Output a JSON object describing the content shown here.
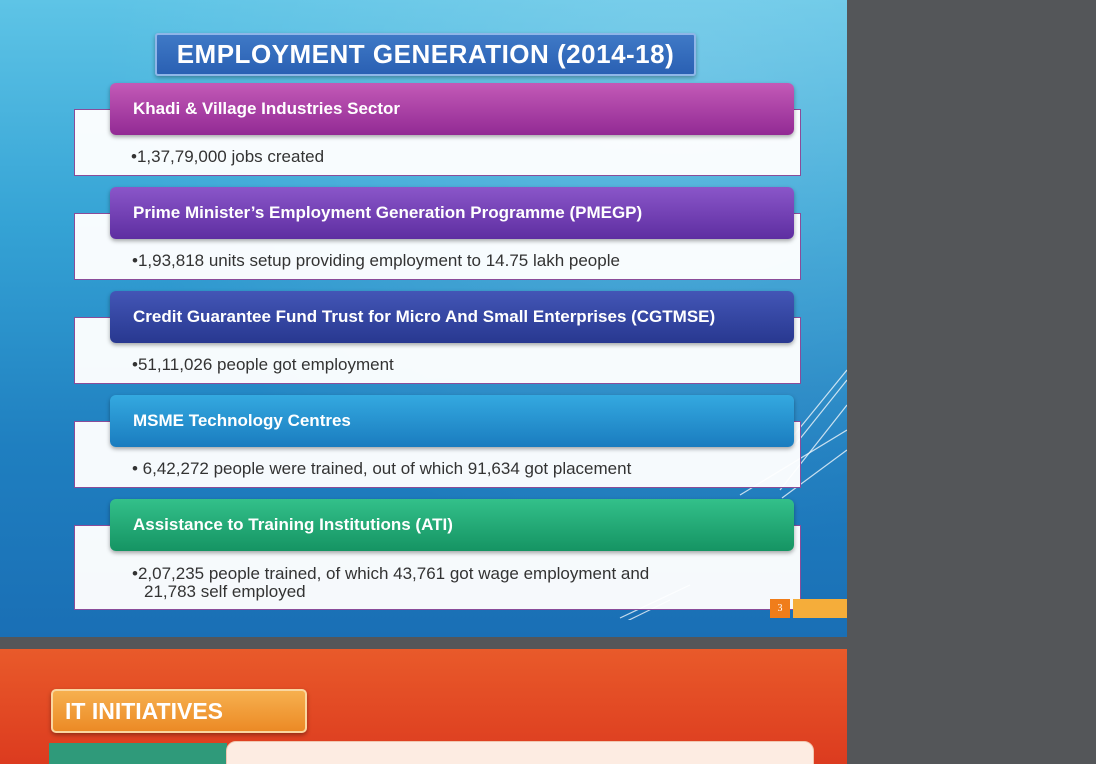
{
  "slide1": {
    "title": "EMPLOYMENT GENERATION (2014-18)",
    "sections": [
      {
        "heading": "Khadi & Village Industries Sector",
        "bullet": "•1,37,79,000 jobs created"
      },
      {
        "heading": "Prime Minister’s Employment Generation Programme (PMEGP)",
        "bullet": "•1,93,818 units setup providing employment to 14.75 lakh people"
      },
      {
        "heading": "Credit Guarantee Fund Trust for Micro And Small Enterprises (CGTMSE)",
        "bullet": "•51,11,026 people got employment"
      },
      {
        "heading": "MSME Technology Centres",
        "bullet": "• 6,42,272 people were trained, out of which 91,634 got placement"
      },
      {
        "heading": "Assistance to Training Institutions (ATI)",
        "bullet_line1": "•2,07,235 people trained, of which 43,761 got wage employment and",
        "bullet_line2": "21,783  self employed"
      }
    ],
    "page_number": "3"
  },
  "slide2": {
    "title": "IT INITIATIVES"
  },
  "colors": {
    "slide1_background": "#35a3d5",
    "section_heading_1": "#922a94",
    "section_heading_2": "#5e2ea1",
    "section_heading_3": "#283890",
    "section_heading_4": "#1a7cbf",
    "section_heading_5": "#159463",
    "slide2_background": "#dc3b1f",
    "viewer_background": "#545659"
  }
}
